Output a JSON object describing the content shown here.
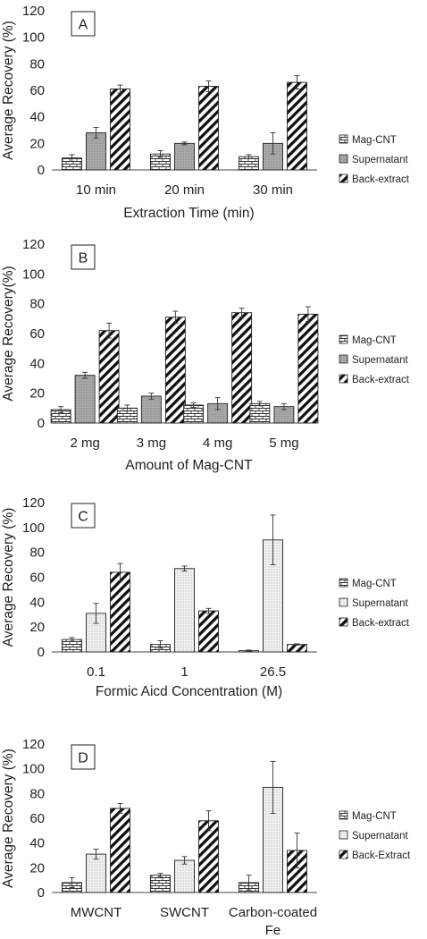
{
  "chart_data": [
    {
      "type": "bar",
      "panel_label": "A",
      "categories": [
        "10 min",
        "20 min",
        "30 min"
      ],
      "series": [
        {
          "name": "Mag-CNT",
          "pattern": "brick",
          "values": [
            9,
            12,
            10
          ],
          "errors": [
            2.5,
            2.5,
            1.5
          ]
        },
        {
          "name": "Supernatant",
          "pattern": "gray-dots",
          "values": [
            28,
            20,
            20
          ],
          "errors": [
            4,
            1,
            8
          ]
        },
        {
          "name": "Back-extract",
          "pattern": "diagonal",
          "values": [
            61,
            63,
            66
          ],
          "errors": [
            3,
            4,
            5
          ]
        }
      ],
      "xlabel": "Extraction Time (min)",
      "ylabel": "Average Recovery (%)",
      "ylim": [
        0,
        120
      ],
      "yticks": [
        "0",
        "20",
        "40",
        "60",
        "80",
        "100",
        "120"
      ],
      "legend_position": "right"
    },
    {
      "type": "bar",
      "panel_label": "B",
      "categories": [
        "2 mg",
        "3 mg",
        "4 mg",
        "5 mg"
      ],
      "series": [
        {
          "name": "Mag-CNT",
          "pattern": "brick",
          "values": [
            9,
            10,
            12,
            13
          ],
          "errors": [
            2,
            2,
            1.5,
            1.5
          ]
        },
        {
          "name": "Supernatant",
          "pattern": "gray-dots",
          "values": [
            32,
            18,
            13,
            11
          ],
          "errors": [
            2,
            2,
            4,
            2
          ]
        },
        {
          "name": "Back-extract",
          "pattern": "diagonal",
          "values": [
            62,
            71,
            74,
            73
          ],
          "errors": [
            5,
            4,
            3,
            5
          ]
        }
      ],
      "xlabel": "Amount of Mag-CNT",
      "ylabel": "Average Recovery(%)",
      "ylim": [
        0,
        120
      ],
      "yticks": [
        "0",
        "20",
        "40",
        "60",
        "80",
        "100",
        "120"
      ],
      "legend_position": "right"
    },
    {
      "type": "bar",
      "panel_label": "C",
      "categories": [
        "0.1",
        "1",
        "26.5"
      ],
      "series": [
        {
          "name": "Mag-CNT",
          "pattern": "brick",
          "values": [
            10,
            6,
            1
          ],
          "errors": [
            1.5,
            3,
            0.5
          ]
        },
        {
          "name": "Supernatant",
          "pattern": "light-dots",
          "values": [
            31,
            67,
            90
          ],
          "errors": [
            8,
            2,
            20
          ]
        },
        {
          "name": "Back-extract",
          "pattern": "diagonal",
          "values": [
            64,
            33,
            6
          ],
          "errors": [
            7,
            2,
            0.5
          ]
        }
      ],
      "xlabel": "Formic Aicd Concentration (M)",
      "ylabel": "Average Recovery (%)",
      "ylim": [
        0,
        120
      ],
      "yticks": [
        "0",
        "20",
        "40",
        "60",
        "80",
        "100",
        "120"
      ],
      "legend_position": "right"
    },
    {
      "type": "bar",
      "panel_label": "D",
      "categories": [
        "MWCNT",
        "SWCNT",
        "Carbon-coated\nFe"
      ],
      "series": [
        {
          "name": "Mag-CNT",
          "pattern": "brick",
          "values": [
            8,
            14,
            8
          ],
          "errors": [
            4,
            1.5,
            6
          ]
        },
        {
          "name": "Supernatant",
          "pattern": "light-dots",
          "values": [
            31,
            26,
            85
          ],
          "errors": [
            4,
            3,
            21
          ]
        },
        {
          "name": "Back-Extract",
          "pattern": "diagonal",
          "values": [
            68,
            58,
            34
          ],
          "errors": [
            4,
            8,
            14
          ]
        }
      ],
      "xlabel": "",
      "ylabel": "Average Recovery (%)",
      "ylim": [
        0,
        120
      ],
      "yticks": [
        "0",
        "20",
        "40",
        "60",
        "80",
        "100",
        "120"
      ],
      "legend_position": "right"
    }
  ]
}
